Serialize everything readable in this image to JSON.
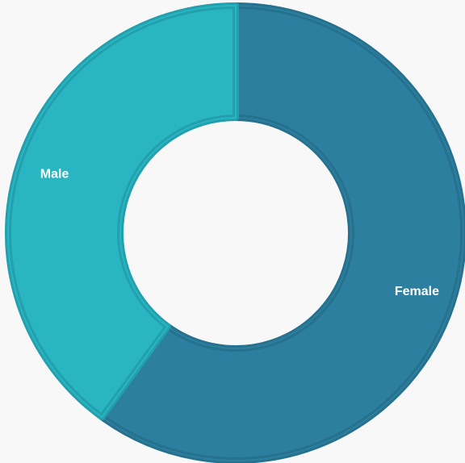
{
  "chart_data": {
    "type": "pie",
    "variant": "donut",
    "title": "",
    "legend": "none",
    "slices": [
      {
        "label": "Female",
        "value": 60,
        "color": "#2c7f9f",
        "edge": "#26718e"
      },
      {
        "label": "Male",
        "value": 40,
        "color": "#29b5c2",
        "edge": "#23a0ad"
      }
    ]
  }
}
